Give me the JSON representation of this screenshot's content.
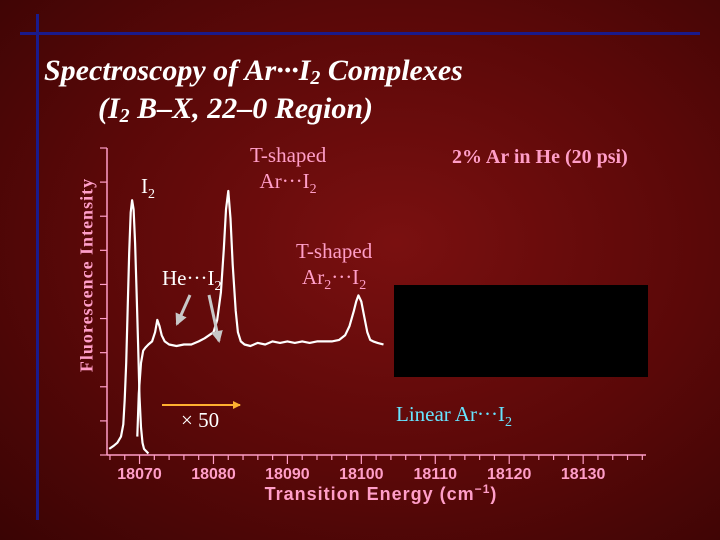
{
  "title": {
    "line1": "Spectroscopy of Ar···I",
    "line1_sub": "2",
    "line1_end": " Complexes",
    "line2_pre": "(I",
    "line2_sub": "2",
    "line2_end": " B–X, 22–0 Region)"
  },
  "annotations": {
    "tshaped_ar": {
      "line1": "T-shaped",
      "line2": "Ar···I",
      "sub": "2"
    },
    "condition": "2% Ar in He (20 psi)",
    "i2": {
      "text": "I",
      "sub": "2"
    },
    "he_i2": {
      "text": "He···I",
      "sub": "2"
    },
    "tshaped_ar2": {
      "line1": "T-shaped",
      "line2a": "Ar",
      "sub_a": "2",
      "line2b": "···I",
      "sub_b": "2"
    },
    "x50": "× 50",
    "linear_ar": {
      "text": "Linear Ar···I",
      "sub": "2"
    }
  },
  "colors": {
    "background": "#5a0808",
    "text_pink": "#ff9ec8",
    "text_cyan": "#67e4ff",
    "trace": "#ffffff",
    "arrow_orange": "#ffb030",
    "arrow_gray": "#c8c8c8"
  },
  "chart_data": {
    "type": "line",
    "xlabel": "Transition Energy (cm",
    "xlabel_sup": "−1",
    "xlabel_end": ")",
    "ylabel": "Fluorescence Intensity",
    "xlim": [
      18065.6,
      18138.5
    ],
    "ylim": [
      0,
      1
    ],
    "x_ticks": [
      18070,
      18080,
      18090,
      18100,
      18110,
      18120,
      18130
    ],
    "series": [
      {
        "x": [
          18065.9,
          18066.5,
          18067,
          18067.5,
          18067.8,
          18068,
          18068.2,
          18068.4,
          18068.6,
          18068.8,
          18069,
          18069.2,
          18069.4,
          18069.6,
          18069.8,
          18070,
          18070.2,
          18070.4,
          18070.6,
          18070.8,
          18071,
          18071.2
        ],
        "y": [
          0.02,
          0.03,
          0.04,
          0.06,
          0.1,
          0.18,
          0.3,
          0.48,
          0.66,
          0.79,
          0.83,
          0.8,
          0.69,
          0.53,
          0.36,
          0.19,
          0.09,
          0.04,
          0.02,
          0.015,
          0.01,
          0.005
        ]
      },
      {
        "name": "× 50",
        "x": [
          18069.7,
          18069.9,
          18070.2,
          18070.5,
          18070.8,
          18071.2,
          18071.7,
          18072.1,
          18072.4,
          18072.7,
          18073,
          18073.4,
          18074,
          18075,
          18076,
          18077,
          18078,
          18078.8,
          18079.4,
          18080,
          18080.5,
          18081,
          18081.4,
          18081.7,
          18082,
          18082.3,
          18082.6,
          18083,
          18083.3,
          18083.7,
          18084.2,
          18085,
          18086,
          18087,
          18088,
          18089,
          18090,
          18091,
          18092,
          18093,
          18094,
          18095,
          18096,
          18097,
          18097.8,
          18098.4,
          18099,
          18099.3,
          18099.6,
          18100,
          18100.4,
          18100.8,
          18101.2,
          18101.6,
          18102.2,
          18103
        ],
        "y": [
          0.06,
          0.2,
          0.3,
          0.34,
          0.35,
          0.36,
          0.37,
          0.4,
          0.44,
          0.42,
          0.39,
          0.37,
          0.36,
          0.355,
          0.36,
          0.36,
          0.37,
          0.38,
          0.39,
          0.4,
          0.44,
          0.53,
          0.67,
          0.8,
          0.86,
          0.77,
          0.62,
          0.47,
          0.4,
          0.37,
          0.36,
          0.355,
          0.365,
          0.36,
          0.37,
          0.365,
          0.37,
          0.365,
          0.37,
          0.365,
          0.37,
          0.37,
          0.37,
          0.375,
          0.39,
          0.42,
          0.47,
          0.5,
          0.52,
          0.5,
          0.45,
          0.4,
          0.375,
          0.37,
          0.365,
          0.36
        ]
      }
    ]
  }
}
